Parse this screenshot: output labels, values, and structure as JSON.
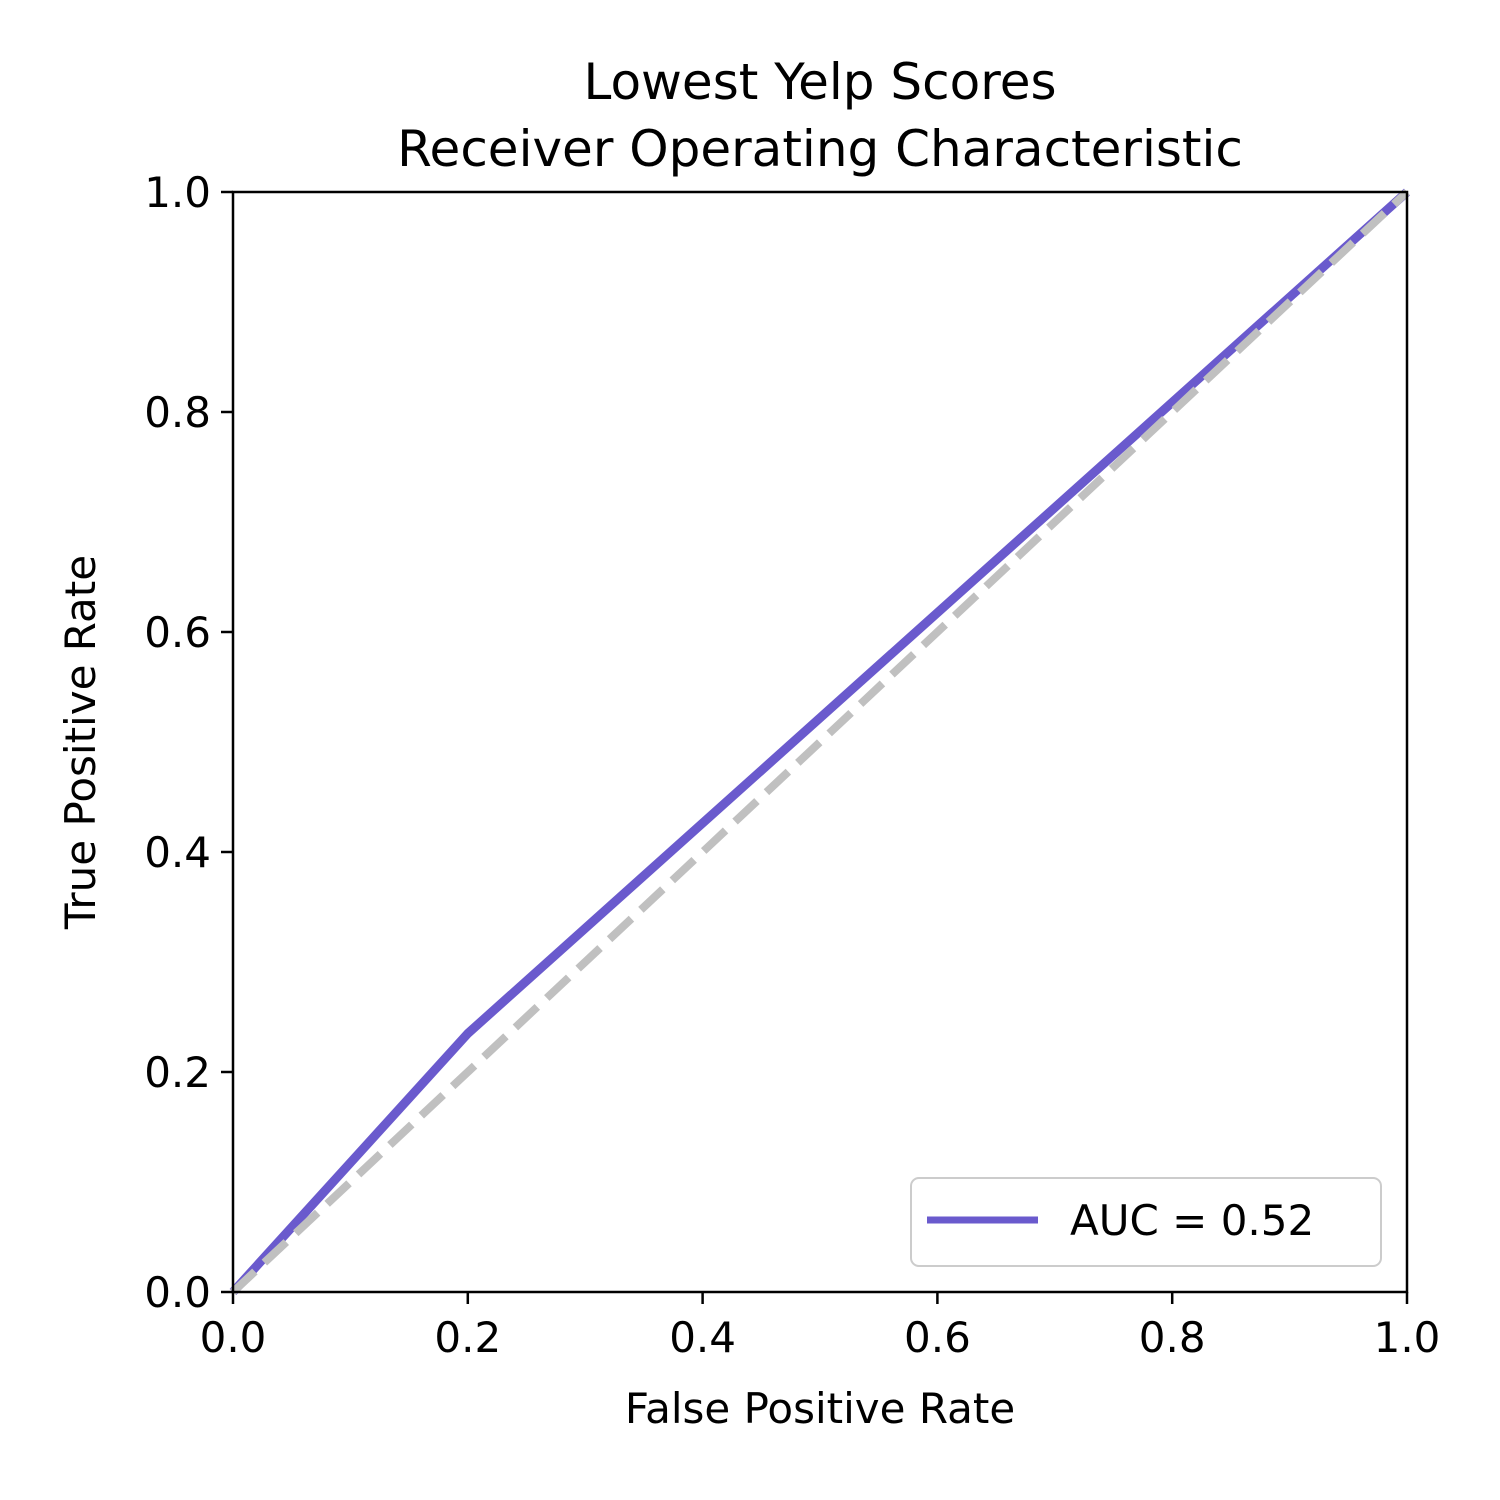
{
  "chart_data": {
    "type": "line",
    "title": [
      "Lowest Yelp Scores",
      "Receiver Operating Characteristic"
    ],
    "xlabel": "False Positive Rate",
    "ylabel": "True Positive Rate",
    "xlim": [
      0.0,
      1.0
    ],
    "ylim": [
      0.0,
      1.0
    ],
    "xticks": [
      0.0,
      0.2,
      0.4,
      0.6,
      0.8,
      1.0
    ],
    "yticks": [
      0.0,
      0.2,
      0.4,
      0.6,
      0.8,
      1.0
    ],
    "xtick_labels": [
      "0.0",
      "0.2",
      "0.4",
      "0.6",
      "0.8",
      "1.0"
    ],
    "ytick_labels": [
      "0.0",
      "0.2",
      "0.4",
      "0.6",
      "0.8",
      "1.0"
    ],
    "grid": false,
    "legend_position": "bottom-right",
    "series": [
      {
        "name": "AUC = 0.52",
        "color": "#6a5acd",
        "style": "solid",
        "x": [
          0.0,
          0.2,
          1.0
        ],
        "y": [
          0.0,
          0.235,
          1.0
        ]
      },
      {
        "color": "#c0c0c0",
        "style": "dashed",
        "x": [
          0.0,
          1.0
        ],
        "y": [
          0.0,
          1.0
        ]
      }
    ]
  }
}
